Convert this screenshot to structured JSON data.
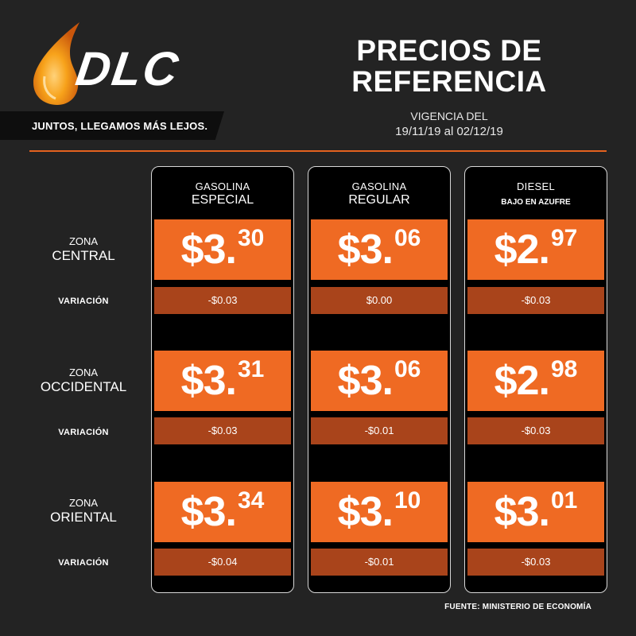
{
  "brand": {
    "logo_text": "DLC",
    "slogan": "JUNTOS, LLEGAMOS MÁS LEJOS."
  },
  "header": {
    "title_line1": "PRECIOS DE",
    "title_line2": "REFERENCIA",
    "vigencia_label": "VIGENCIA DEL",
    "vigencia_dates": "19/11/19 al 02/12/19"
  },
  "columns": [
    {
      "line1": "GASOLINA",
      "line2": "ESPECIAL"
    },
    {
      "line1": "GASOLINA",
      "line2": "REGULAR"
    },
    {
      "line1": "DIESEL",
      "line2": "BAJO EN AZUFRE"
    }
  ],
  "zones": [
    {
      "line1": "ZONA",
      "line2": "CENTRAL",
      "variation_label": "VARIACIÓN",
      "prices": [
        {
          "dollars": "$3.",
          "cents": "30",
          "variation": "-$0.03"
        },
        {
          "dollars": "$3.",
          "cents": "06",
          "variation": "$0.00"
        },
        {
          "dollars": "$2.",
          "cents": "97",
          "variation": "-$0.03"
        }
      ]
    },
    {
      "line1": "ZONA",
      "line2": "OCCIDENTAL",
      "variation_label": "VARIACIÓN",
      "prices": [
        {
          "dollars": "$3.",
          "cents": "31",
          "variation": "-$0.03"
        },
        {
          "dollars": "$3.",
          "cents": "06",
          "variation": "-$0.01"
        },
        {
          "dollars": "$2.",
          "cents": "98",
          "variation": "-$0.03"
        }
      ]
    },
    {
      "line1": "ZONA",
      "line2": "ORIENTAL",
      "variation_label": "VARIACIÓN",
      "prices": [
        {
          "dollars": "$3.",
          "cents": "34",
          "variation": "-$0.04"
        },
        {
          "dollars": "$3.",
          "cents": "10",
          "variation": "-$0.01"
        },
        {
          "dollars": "$3.",
          "cents": "01",
          "variation": "-$0.03"
        }
      ]
    }
  ],
  "footer": {
    "source": "FUENTE: MINISTERIO DE ECONOMÍA"
  },
  "colors": {
    "background": "#232323",
    "accent_orange": "#ef6a23",
    "variation_bg": "#a9441b",
    "column_bg": "#000000"
  },
  "icons": {
    "logo_drop": "oil-drop-icon"
  }
}
